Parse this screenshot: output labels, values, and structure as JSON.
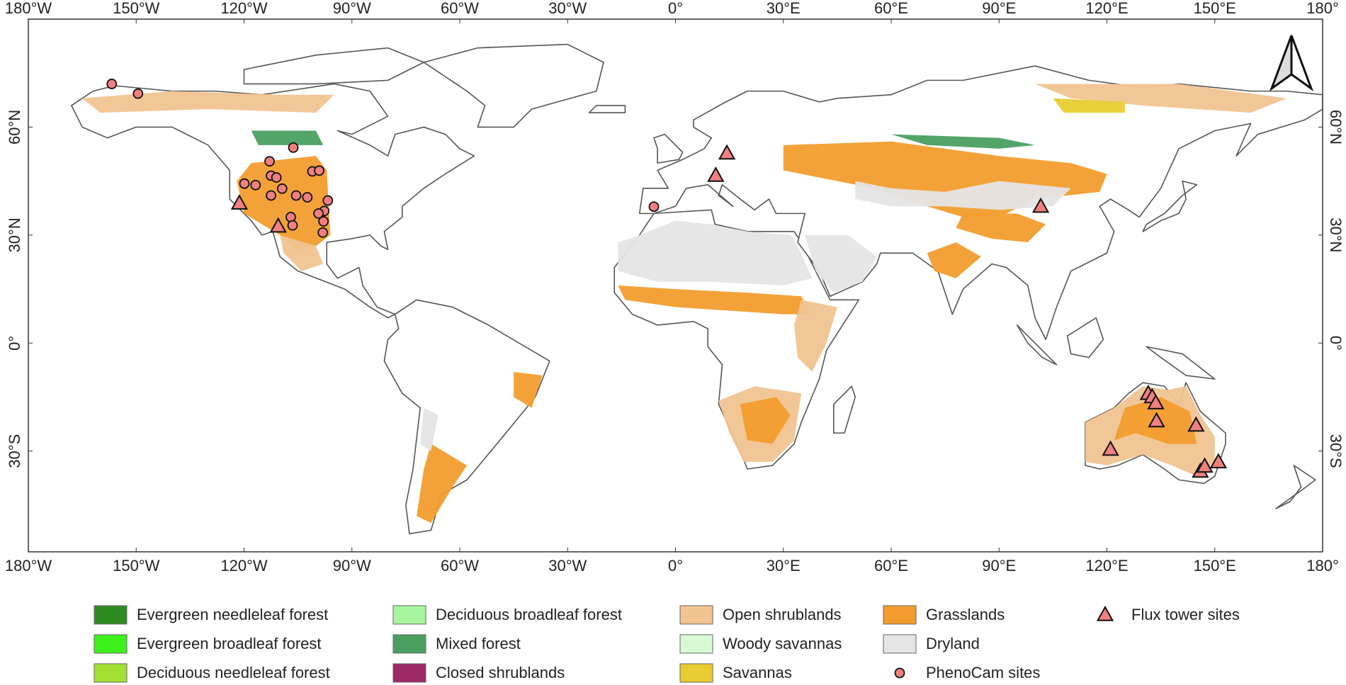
{
  "map": {
    "type": "map",
    "xlim": [
      -180,
      180
    ],
    "ylim": [
      -58,
      90
    ],
    "xticks": [
      {
        "value": -180,
        "label": "180°W"
      },
      {
        "value": -150,
        "label": "150°W"
      },
      {
        "value": -120,
        "label": "120°W"
      },
      {
        "value": -90,
        "label": "90°W"
      },
      {
        "value": -60,
        "label": "60°W"
      },
      {
        "value": -30,
        "label": "30°W"
      },
      {
        "value": 0,
        "label": "0°"
      },
      {
        "value": 30,
        "label": "30°E"
      },
      {
        "value": 60,
        "label": "60°E"
      },
      {
        "value": 90,
        "label": "90°E"
      },
      {
        "value": 120,
        "label": "120°E"
      },
      {
        "value": 150,
        "label": "150°E"
      },
      {
        "value": 180,
        "label": "180°"
      }
    ],
    "yticks": [
      {
        "value": -30,
        "label": "30°S"
      },
      {
        "value": 0,
        "label": "0°"
      },
      {
        "value": 30,
        "label": "30°N"
      },
      {
        "value": 60,
        "label": "60°N"
      }
    ],
    "classes": [
      {
        "name": "Evergreen needleleaf forest",
        "color": "#2e8b22"
      },
      {
        "name": "Evergreen broadleaf forest",
        "color": "#3cf21a"
      },
      {
        "name": "Deciduous needleleaf forest",
        "color": "#a3e032"
      },
      {
        "name": "Deciduous broadleaf forest",
        "color": "#a8f5a0"
      },
      {
        "name": "Mixed forest",
        "color": "#4a9f60"
      },
      {
        "name": "Closed shrublands",
        "color": "#9b2a66"
      },
      {
        "name": "Open shrublands",
        "color": "#f1c491"
      },
      {
        "name": "Woody savannas",
        "color": "#d7fad5"
      },
      {
        "name": "Savannas",
        "color": "#e8cc30"
      },
      {
        "name": "Grasslands",
        "color": "#f29d2e"
      },
      {
        "name": "Dryland",
        "color": "#e5e5e5"
      }
    ],
    "series": [
      {
        "name": "PhenoCam sites",
        "marker": "circle",
        "color": "#f08080",
        "lon": [
          -156.8,
          -149.5,
          -106.3,
          -112.9,
          -119.9,
          -116.8,
          -112.5,
          -111.0,
          -109.4,
          -112.5,
          -105.5,
          -102.4,
          -101.0,
          -99.1,
          -96.7,
          -97.7,
          -99.3,
          -97.9,
          -98.1,
          -107.0,
          -106.5,
          -6.0
        ],
        "lat": [
          72.0,
          69.3,
          54.3,
          50.5,
          44.3,
          43.9,
          46.5,
          46.0,
          42.9,
          41.0,
          41.0,
          40.5,
          47.7,
          47.9,
          39.6,
          36.7,
          36.0,
          33.8,
          30.7,
          35.0,
          32.7,
          37.9
        ]
      },
      {
        "name": "Flux tower sites",
        "marker": "triangle",
        "color": "#f08080",
        "lon": [
          -121.3,
          -110.5,
          14.3,
          11.2,
          101.6,
          131.5,
          132.6,
          133.6,
          133.8,
          144.8,
          121.0,
          146.0,
          147.2,
          151.0
        ],
        "lat": [
          38.8,
          32.4,
          52.7,
          46.5,
          37.9,
          -14.1,
          -15.0,
          -16.7,
          -21.7,
          -22.9,
          -29.6,
          -35.7,
          -34.3,
          -33.1
        ]
      }
    ]
  }
}
